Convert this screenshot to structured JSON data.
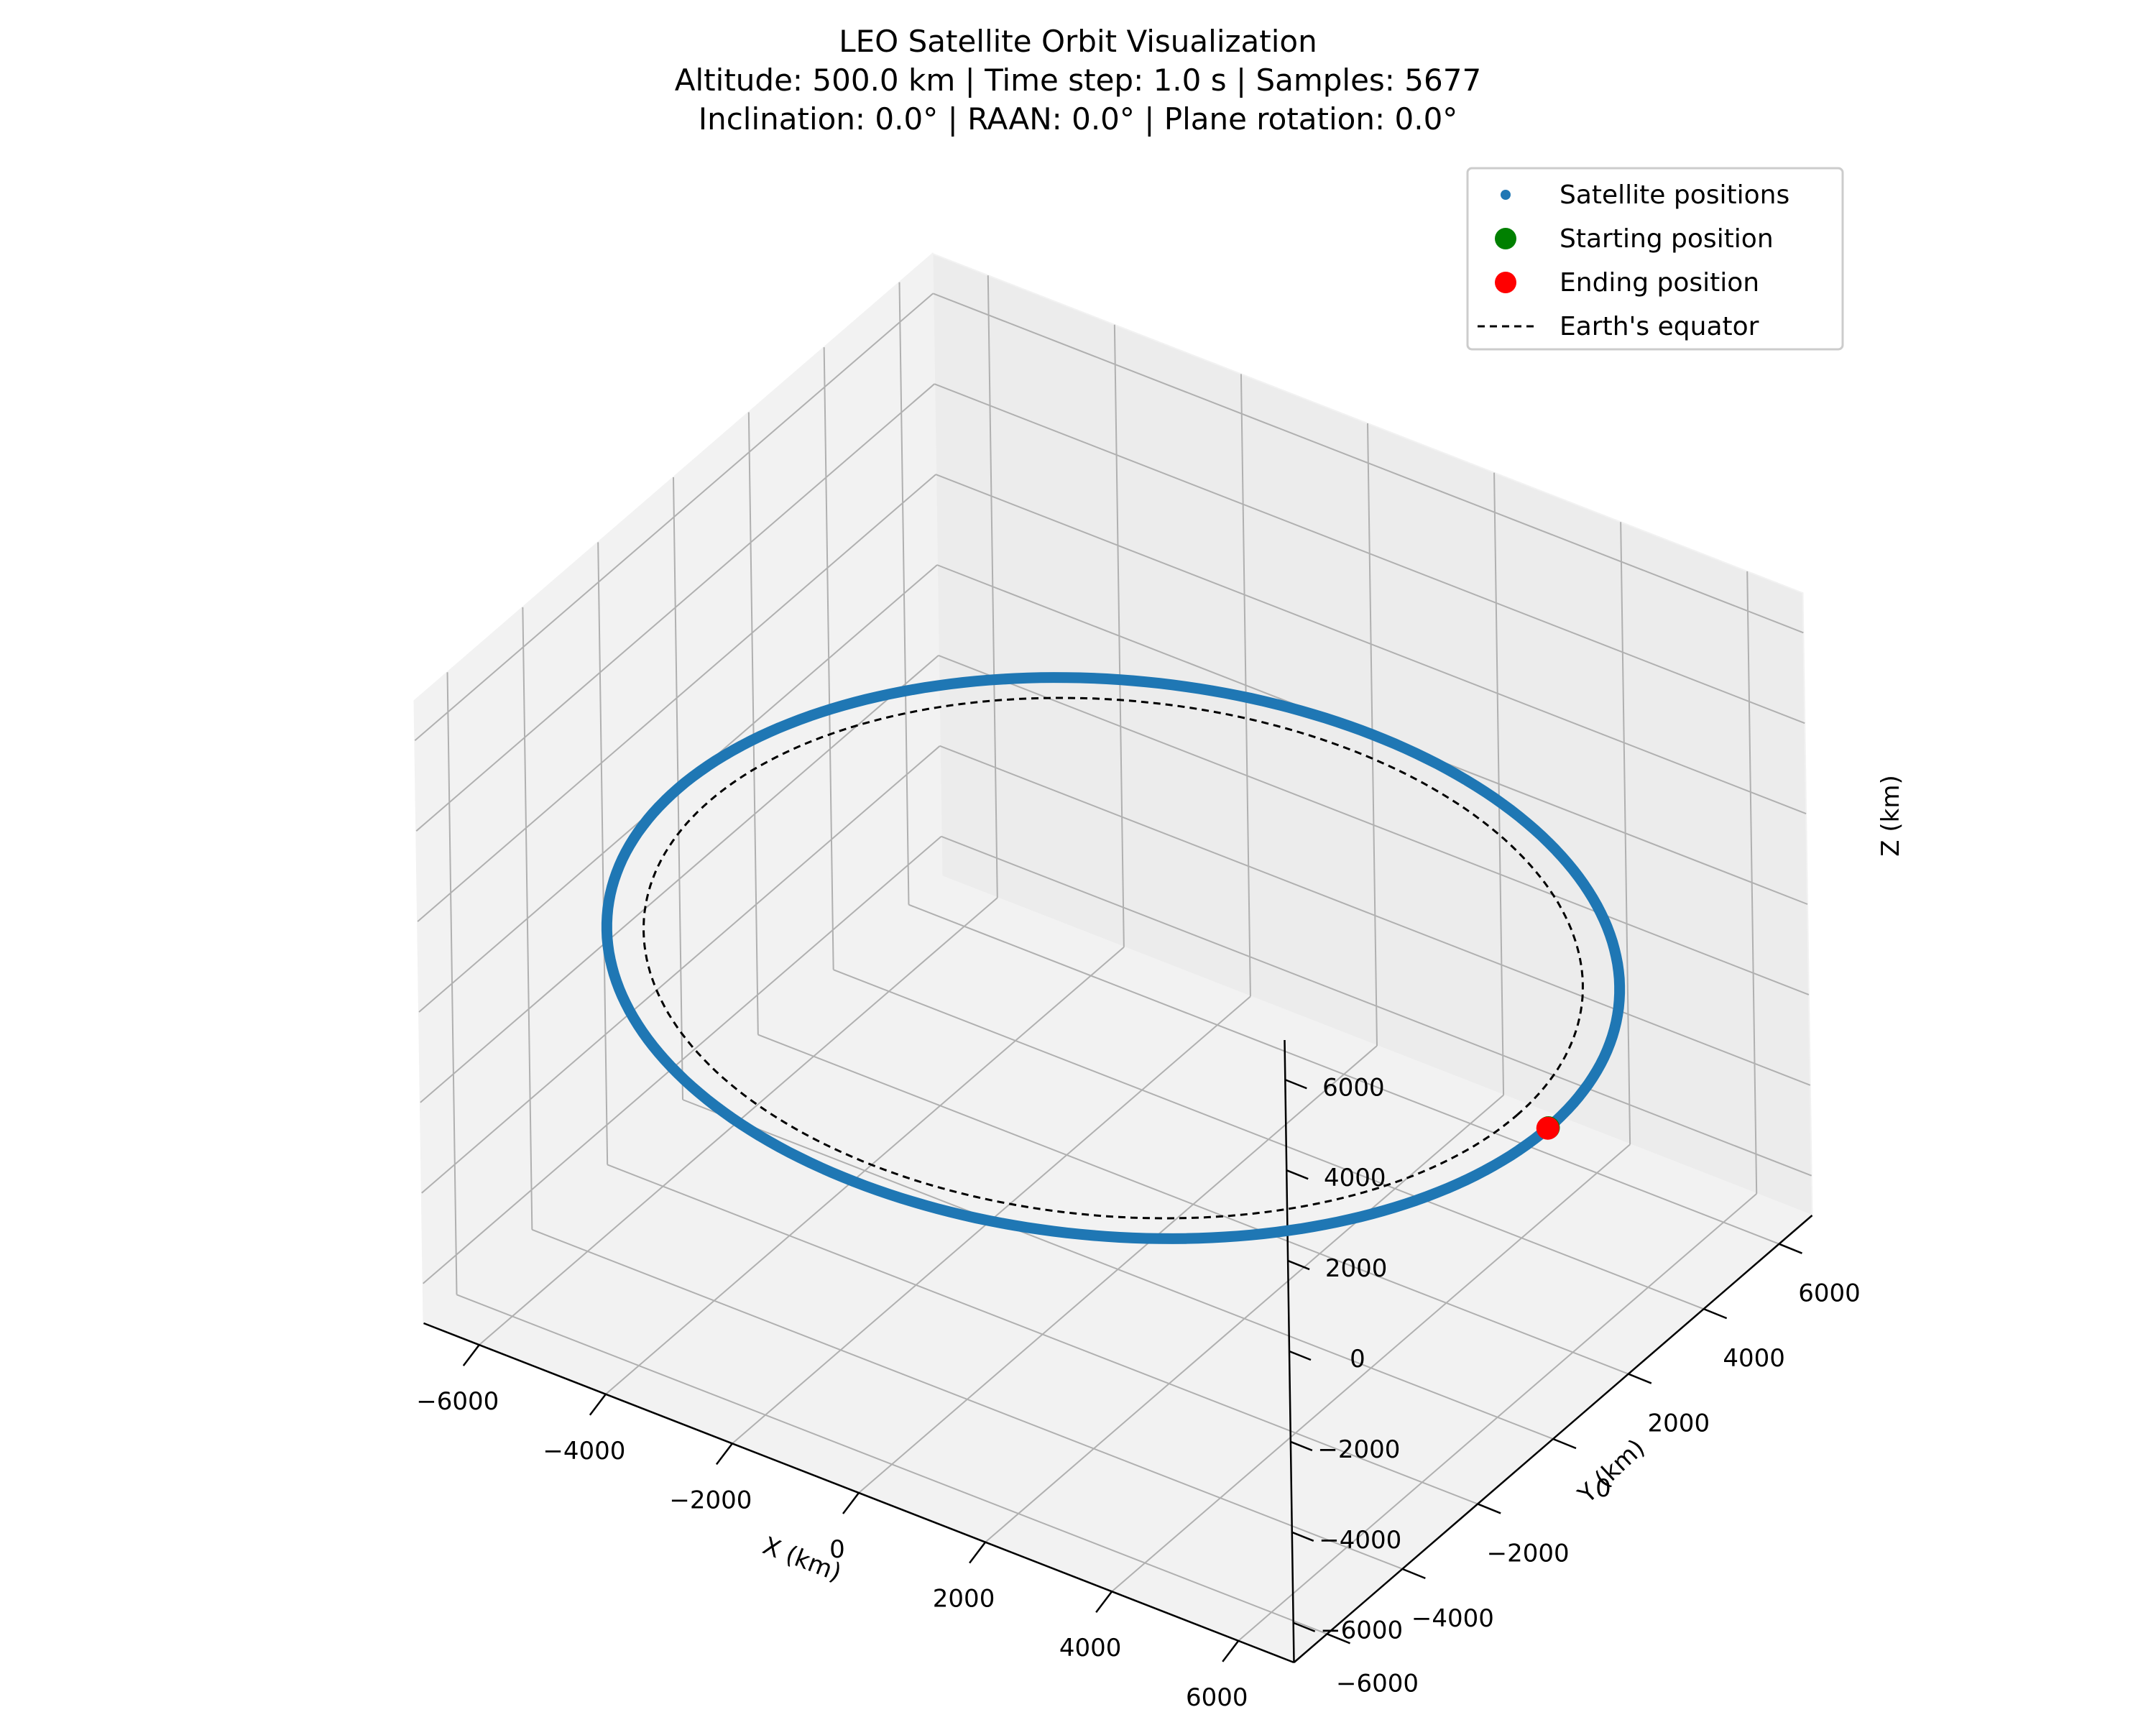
{
  "chart_data": {
    "type": "scatter",
    "projection": "3d",
    "title_lines": [
      "LEO Satellite Orbit Visualization",
      "Altitude: 500.0 km | Time step: 1.0 s | Samples: 5677",
      "Inclination: 0.0° | RAAN: 0.0° | Plane rotation: 0.0°"
    ],
    "xlabel": "X (km)",
    "ylabel": "Y (km)",
    "zlabel": "Z (km)",
    "xlim": [
      -6878,
      6878
    ],
    "ylim": [
      -6878,
      6878
    ],
    "zlim": [
      -6878,
      6878
    ],
    "xticks": [
      -6000,
      -4000,
      -2000,
      0,
      2000,
      4000,
      6000
    ],
    "yticks": [
      -6000,
      -4000,
      -2000,
      0,
      2000,
      4000,
      6000
    ],
    "zticks": [
      -6000,
      -4000,
      -2000,
      0,
      2000,
      4000,
      6000
    ],
    "xtick_labels": [
      "−6000",
      "−4000",
      "−2000",
      "0",
      "2000",
      "4000",
      "6000"
    ],
    "ytick_labels": [
      "−6000",
      "−4000",
      "−2000",
      "0",
      "2000",
      "4000",
      "6000"
    ],
    "ztick_labels": [
      "−6000",
      "−4000",
      "−2000",
      "0",
      "2000",
      "4000",
      "6000"
    ],
    "grid": true,
    "legend_position": "top-right",
    "series": [
      {
        "name": "Satellite positions",
        "kind": "scatter",
        "color": "#1f77b4",
        "orbit_radius_km": 6878,
        "center": [
          0,
          0,
          0
        ],
        "samples": 5677
      },
      {
        "name": "Starting position",
        "kind": "point",
        "color": "#008000",
        "point": [
          6878,
          0,
          0
        ]
      },
      {
        "name": "Ending position",
        "kind": "point",
        "color": "#ff0000",
        "point": [
          6878,
          -15,
          0
        ]
      },
      {
        "name": "Earth's equator",
        "kind": "line",
        "style": "dashed",
        "color": "#000000",
        "radius_km": 6378,
        "center": [
          0,
          0,
          0
        ]
      }
    ],
    "view": {
      "elevation_deg": 30,
      "azimuth_deg": -60
    }
  }
}
